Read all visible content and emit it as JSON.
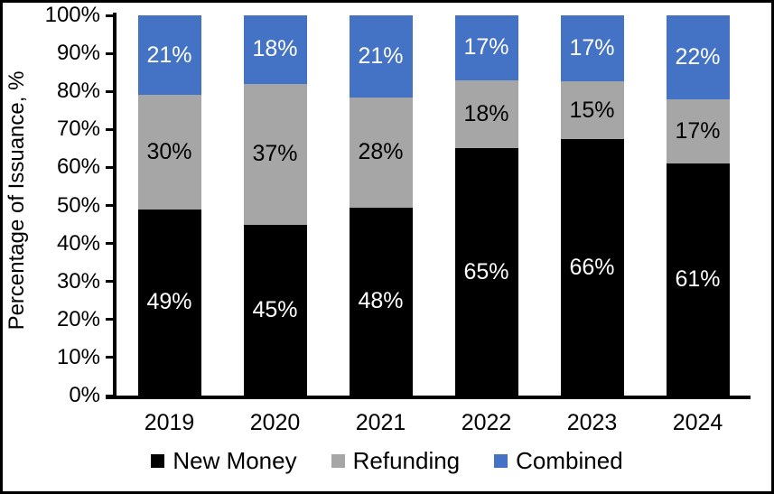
{
  "chart_data": {
    "type": "bar",
    "stacked": true,
    "title": "",
    "xlabel": "",
    "ylabel": "Percentage of Issuance, %",
    "categories": [
      "2019",
      "2020",
      "2021",
      "2022",
      "2023",
      "2024"
    ],
    "series": [
      {
        "name": "New Money",
        "color": "#000000",
        "label_color": "#ffffff",
        "values": [
          49,
          45,
          48,
          65,
          66,
          61
        ]
      },
      {
        "name": "Refunding",
        "color": "#A6A6A6",
        "label_color": "#000000",
        "values": [
          30,
          37,
          28,
          18,
          15,
          17
        ]
      },
      {
        "name": "Combined",
        "color": "#4472C4",
        "label_color": "#ffffff",
        "values": [
          21,
          18,
          21,
          17,
          17,
          22
        ]
      }
    ],
    "value_suffix": "%",
    "ylim": [
      0,
      100
    ],
    "ytick_step": 10,
    "ytick_labels": [
      "0%",
      "10%",
      "20%",
      "30%",
      "40%",
      "50%",
      "60%",
      "70%",
      "80%",
      "90%",
      "100%"
    ],
    "grid": false,
    "legend_position": "bottom",
    "axis_color": "#000000"
  }
}
